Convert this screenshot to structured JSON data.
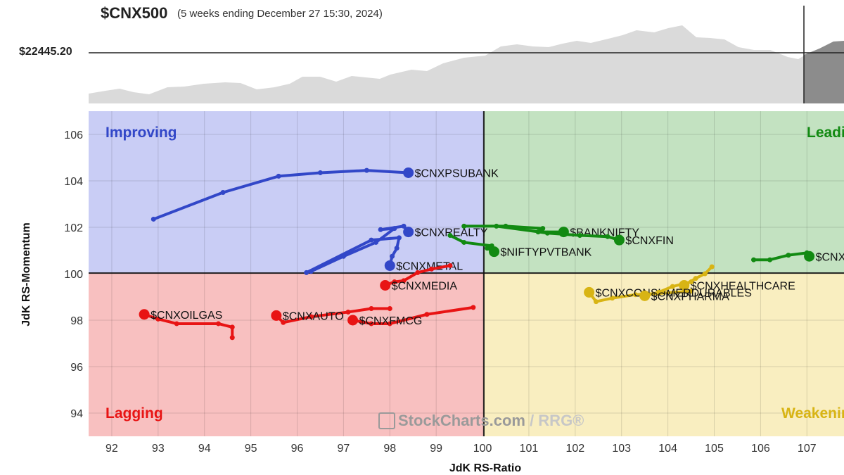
{
  "header": {
    "symbol": "$CNX500",
    "subtitle": "(5 weeks ending December 27 15:30, 2024)",
    "price_label": "$22445.20"
  },
  "watermark": {
    "brand": "StockCharts.com",
    "separator": " / ",
    "product": "RRG®"
  },
  "quadrants": {
    "improving": {
      "label": "Improving",
      "color": "#3247c8"
    },
    "leading": {
      "label": "Leading",
      "color": "#128a12"
    },
    "lagging": {
      "label": "Lagging",
      "color": "#e81414"
    },
    "weakening": {
      "label": "Weakening",
      "color": "#d8b414"
    }
  },
  "chart_data": {
    "type": "scatter",
    "xlabel": "JdK RS-Ratio",
    "ylabel": "JdK RS-Momentum",
    "xlim": [
      91.5,
      107.8
    ],
    "ylim": [
      93,
      107
    ],
    "x_ticks": [
      92,
      93,
      94,
      95,
      96,
      97,
      98,
      99,
      100,
      101,
      102,
      103,
      104,
      105,
      106,
      107
    ],
    "y_ticks": [
      94,
      96,
      98,
      100,
      102,
      104,
      106
    ],
    "center": [
      100,
      100
    ],
    "series": [
      {
        "name": "$CNXPSUBANK",
        "color": "#3247c8",
        "points": [
          [
            92.9,
            102.35
          ],
          [
            94.4,
            103.5
          ],
          [
            95.6,
            104.2
          ],
          [
            96.5,
            104.35
          ],
          [
            97.5,
            104.45
          ],
          [
            98.4,
            104.35
          ]
        ]
      },
      {
        "name": "$CNXREALTY",
        "color": "#3247c8",
        "points": [
          [
            96.3,
            100.1
          ],
          [
            97.0,
            100.75
          ],
          [
            97.7,
            101.35
          ],
          [
            98.1,
            101.95
          ],
          [
            97.8,
            101.9
          ],
          [
            98.3,
            102.05
          ],
          [
            98.4,
            101.8
          ]
        ]
      },
      {
        "name": "$CNXMETAL",
        "color": "#3247c8",
        "points": [
          [
            96.2,
            100.05
          ],
          [
            97.6,
            101.45
          ],
          [
            98.2,
            101.55
          ],
          [
            98.15,
            101.1
          ],
          [
            98.05,
            100.75
          ],
          [
            98.0,
            100.35
          ]
        ]
      },
      {
        "name": "$CNXMEDIA",
        "color": "#e81414",
        "points": [
          [
            99.3,
            100.35
          ],
          [
            98.9,
            100.2
          ],
          [
            98.6,
            100.05
          ],
          [
            98.3,
            99.7
          ],
          [
            98.1,
            99.65
          ],
          [
            97.9,
            99.5
          ]
        ]
      },
      {
        "name": "$CNXOILGAS",
        "color": "#e81414",
        "points": [
          [
            94.6,
            97.25
          ],
          [
            94.6,
            97.7
          ],
          [
            94.3,
            97.85
          ],
          [
            93.4,
            97.85
          ],
          [
            93.0,
            98.05
          ],
          [
            92.7,
            98.25
          ]
        ]
      },
      {
        "name": "$CNXAUTO",
        "color": "#e81414",
        "points": [
          [
            98.0,
            98.5
          ],
          [
            97.6,
            98.5
          ],
          [
            97.1,
            98.35
          ],
          [
            96.3,
            98.15
          ],
          [
            95.7,
            97.9
          ],
          [
            95.55,
            98.2
          ]
        ]
      },
      {
        "name": "$CNXFMCG",
        "color": "#e81414",
        "points": [
          [
            99.8,
            98.55
          ],
          [
            98.8,
            98.25
          ],
          [
            98.0,
            97.85
          ],
          [
            97.6,
            97.85
          ],
          [
            97.2,
            98.0
          ]
        ]
      },
      {
        "name": "$BANKNIFTY",
        "color": "#128a12",
        "points": [
          [
            99.6,
            102.05
          ],
          [
            100.5,
            102.05
          ],
          [
            101.3,
            101.95
          ],
          [
            101.2,
            101.8
          ],
          [
            101.75,
            101.8
          ]
        ]
      },
      {
        "name": "$CNXFIN",
        "color": "#128a12",
        "points": [
          [
            100.3,
            102.05
          ],
          [
            101.4,
            101.75
          ],
          [
            102.1,
            101.65
          ],
          [
            102.7,
            101.6
          ],
          [
            102.95,
            101.45
          ]
        ]
      },
      {
        "name": "$NIFTYPVTBANK",
        "color": "#128a12",
        "points": [
          [
            99.3,
            101.65
          ],
          [
            99.6,
            101.35
          ],
          [
            100.2,
            101.2
          ],
          [
            100.1,
            101.1
          ],
          [
            100.25,
            100.95
          ]
        ]
      },
      {
        "name": "$CNXIT",
        "color": "#128a12",
        "points": [
          [
            105.85,
            100.6
          ],
          [
            106.2,
            100.6
          ],
          [
            106.6,
            100.8
          ],
          [
            107.0,
            100.9
          ],
          [
            107.05,
            100.75
          ]
        ]
      },
      {
        "name": "$CNXHEALTHCARE",
        "color": "#d8b414",
        "points": [
          [
            104.95,
            100.3
          ],
          [
            104.8,
            100.0
          ],
          [
            104.6,
            99.8
          ],
          [
            104.35,
            99.5
          ]
        ]
      },
      {
        "name": "$CNXCONSUMERDURABLES",
        "color": "#d8b414",
        "points": [
          [
            104.5,
            99.25
          ],
          [
            103.8,
            99.15
          ],
          [
            103.3,
            99.1
          ],
          [
            102.8,
            98.95
          ],
          [
            102.45,
            98.8
          ],
          [
            102.3,
            99.2
          ]
        ]
      },
      {
        "name": "$CNXPHARMA",
        "color": "#d8b414",
        "points": [
          [
            104.5,
            99.65
          ],
          [
            104.1,
            99.45
          ],
          [
            103.8,
            99.2
          ],
          [
            103.5,
            99.05
          ]
        ]
      }
    ]
  }
}
